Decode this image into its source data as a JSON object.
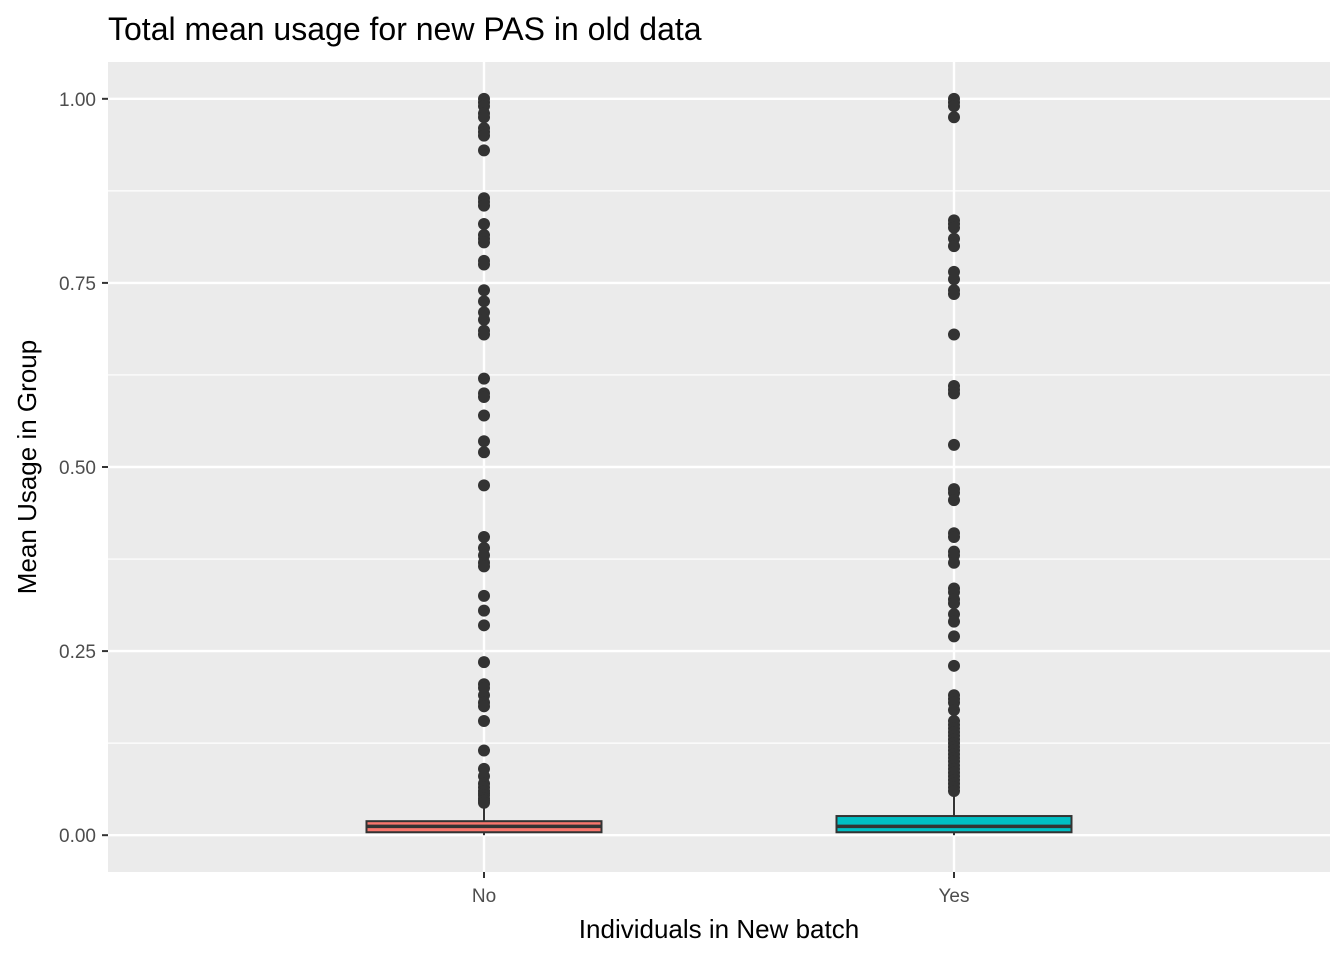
{
  "chart_data": {
    "type": "boxplot",
    "title": "Total mean usage for new PAS in old data",
    "xlabel": "Individuals in New batch",
    "ylabel": "Mean Usage in Group",
    "ylim": [
      -0.05,
      1.05
    ],
    "yticks": [
      0.0,
      0.25,
      0.5,
      0.75,
      1.0
    ],
    "ytick_labels": [
      "0.00",
      "0.25",
      "0.50",
      "0.75",
      "1.00"
    ],
    "categories": [
      "No",
      "Yes"
    ],
    "grid": true,
    "legend": "none",
    "background": "#ebebeb",
    "series": [
      {
        "fill": "#f8766d",
        "whisker_low": 0.0,
        "q1": 0.004,
        "median": 0.012,
        "q3": 0.019,
        "whisker_high": 0.042,
        "outliers": [
          1.0,
          0.995,
          0.99,
          0.98,
          0.975,
          0.96,
          0.955,
          0.95,
          0.93,
          0.865,
          0.86,
          0.855,
          0.83,
          0.815,
          0.81,
          0.805,
          0.78,
          0.775,
          0.74,
          0.725,
          0.71,
          0.7,
          0.685,
          0.68,
          0.62,
          0.6,
          0.595,
          0.57,
          0.535,
          0.52,
          0.475,
          0.405,
          0.39,
          0.38,
          0.37,
          0.365,
          0.325,
          0.305,
          0.285,
          0.235,
          0.205,
          0.2,
          0.19,
          0.18,
          0.175,
          0.155,
          0.115,
          0.09,
          0.08,
          0.07,
          0.065,
          0.06,
          0.057,
          0.054,
          0.05,
          0.047,
          0.044
        ]
      },
      {
        "fill": "#00bfc4",
        "whisker_low": 0.0,
        "q1": 0.004,
        "median": 0.012,
        "q3": 0.026,
        "whisker_high": 0.055,
        "outliers": [
          1.0,
          0.995,
          0.99,
          0.975,
          0.835,
          0.83,
          0.825,
          0.81,
          0.8,
          0.765,
          0.755,
          0.74,
          0.735,
          0.68,
          0.61,
          0.605,
          0.6,
          0.53,
          0.47,
          0.465,
          0.455,
          0.41,
          0.405,
          0.385,
          0.38,
          0.37,
          0.335,
          0.33,
          0.32,
          0.315,
          0.3,
          0.29,
          0.27,
          0.23,
          0.19,
          0.185,
          0.18,
          0.17,
          0.155,
          0.15,
          0.145,
          0.14,
          0.135,
          0.13,
          0.125,
          0.12,
          0.115,
          0.11,
          0.105,
          0.1,
          0.095,
          0.09,
          0.085,
          0.08,
          0.075,
          0.07,
          0.065,
          0.06
        ]
      }
    ]
  }
}
